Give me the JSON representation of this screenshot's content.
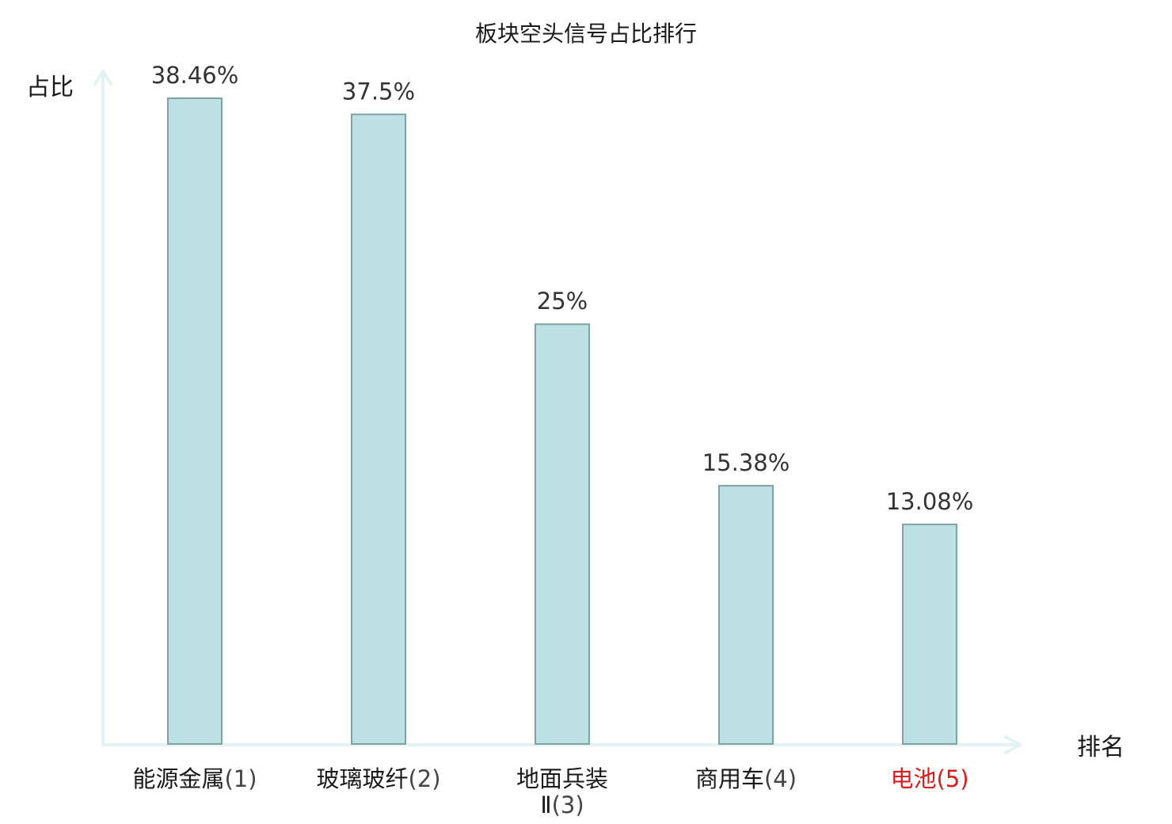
{
  "chart_data": {
    "type": "bar",
    "title": "板块空头信号占比排行",
    "ylabel": "占比",
    "xlabel": "排名",
    "categories": [
      {
        "name": "能源金属",
        "rank": "(1)"
      },
      {
        "name": "玻璃玻纤",
        "rank": "(2)"
      },
      {
        "name": "地面兵装Ⅱ",
        "rank": "(3)"
      },
      {
        "name": "商用车",
        "rank": "(4)"
      },
      {
        "name": "电池",
        "rank": "(5)"
      }
    ],
    "values": [
      38.46,
      37.5,
      25,
      15.38,
      13.08
    ],
    "value_labels": [
      "38.46%",
      "37.5%",
      "25%",
      "15.38%",
      "13.08%"
    ],
    "ylim": [
      0,
      38.46
    ],
    "grid": false,
    "highlight_index": 4,
    "colors": {
      "bar_fill": "#bde0e2",
      "bar_stroke": "#7fa3a5",
      "axis": "#e2f3f1",
      "label_text": "#1a1a1a",
      "rank_text": "#444444",
      "highlight_text": "#e31a1c"
    }
  }
}
